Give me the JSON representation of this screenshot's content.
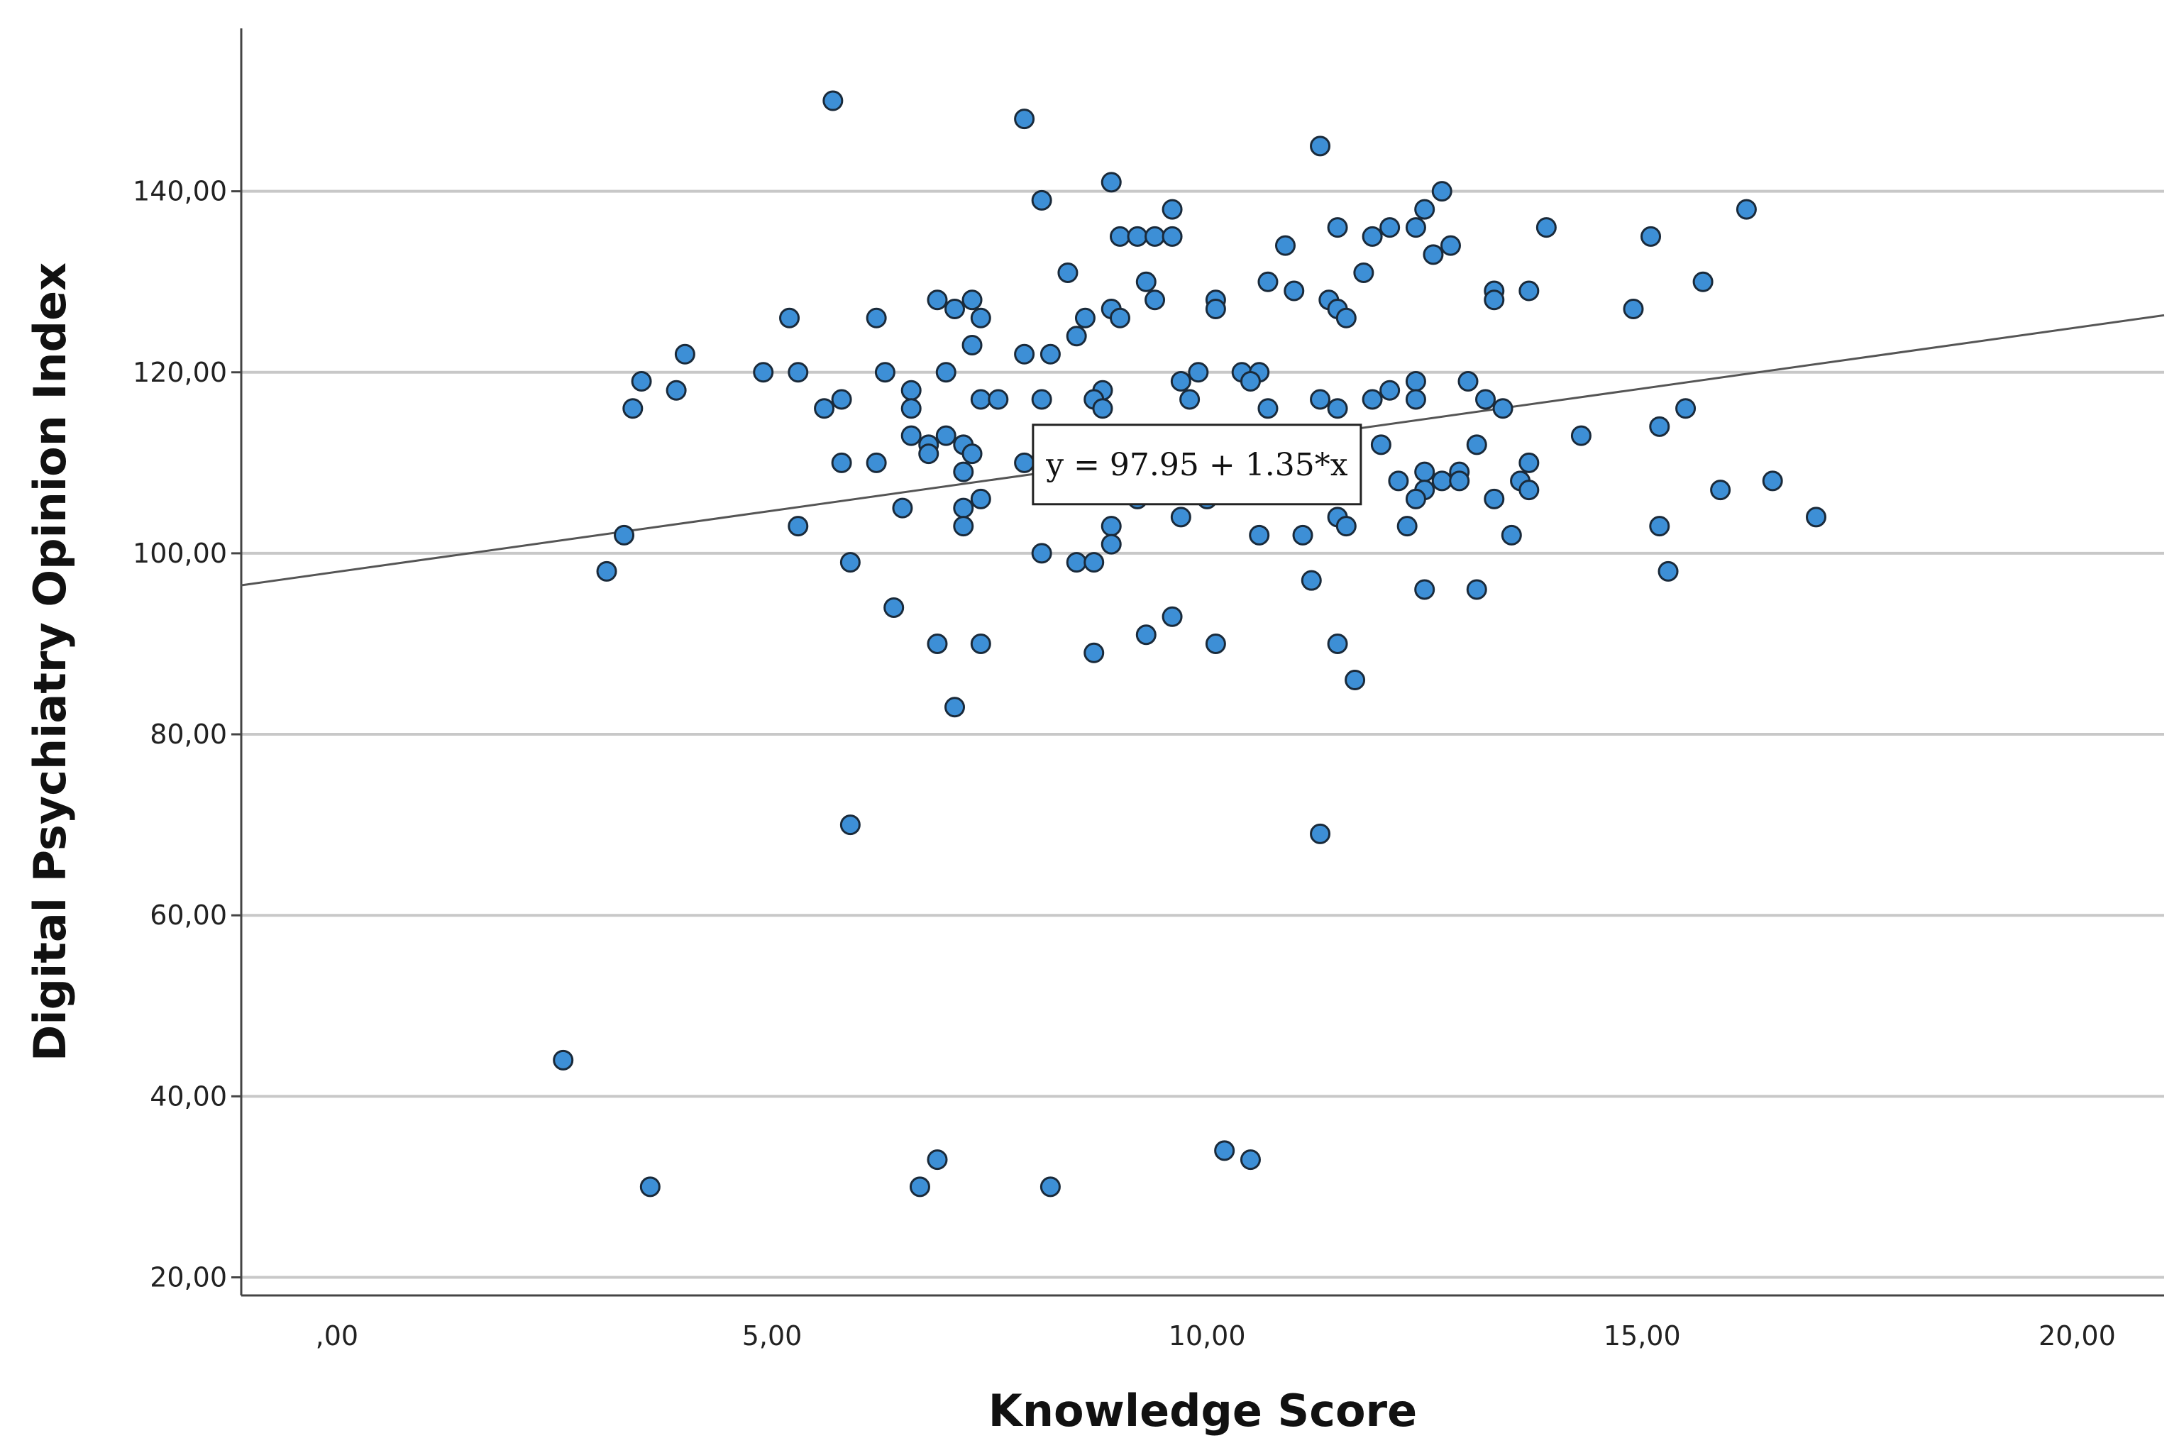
{
  "chart_data": {
    "type": "scatter",
    "title": "",
    "xlabel": "Knowledge Score",
    "ylabel": "Digital Psychiatry Opinion Index",
    "xlim": [
      -1.1,
      21.0
    ],
    "ylim": [
      18.0,
      158.0
    ],
    "x_ticks": [
      0,
      5,
      10,
      15,
      20
    ],
    "x_tick_labels": [
      ",00",
      "5,00",
      "10,00",
      "15,00",
      "20,00"
    ],
    "y_ticks": [
      20,
      40,
      60,
      80,
      100,
      120,
      140
    ],
    "y_tick_labels": [
      "20,00",
      "40,00",
      "60,00",
      "80,00",
      "100,00",
      "120,00",
      "140,00"
    ],
    "grid": "horizontal",
    "marker_color": "#3d8fd6",
    "marker_edge_color": "#1a2a3a",
    "line_color": "#555555",
    "fit_line": {
      "intercept": 97.95,
      "slope": 1.35,
      "label": "y = 97.95 + 1.35*x"
    },
    "points": [
      [
        5.7,
        150
      ],
      [
        7.9,
        148
      ],
      [
        11.3,
        145
      ],
      [
        8.9,
        141
      ],
      [
        12.7,
        140
      ],
      [
        8.1,
        139
      ],
      [
        9.6,
        138
      ],
      [
        12.5,
        138
      ],
      [
        16.2,
        138
      ],
      [
        11.5,
        136
      ],
      [
        12.1,
        136
      ],
      [
        12.4,
        136
      ],
      [
        13.9,
        136
      ],
      [
        9.0,
        135
      ],
      [
        9.2,
        135
      ],
      [
        9.4,
        135
      ],
      [
        9.6,
        135
      ],
      [
        11.9,
        135
      ],
      [
        15.1,
        135
      ],
      [
        10.9,
        134
      ],
      [
        12.8,
        134
      ],
      [
        12.6,
        133
      ],
      [
        8.4,
        131
      ],
      [
        11.8,
        131
      ],
      [
        9.3,
        130
      ],
      [
        10.7,
        130
      ],
      [
        15.7,
        130
      ],
      [
        11.0,
        129
      ],
      [
        13.3,
        129
      ],
      [
        13.7,
        129
      ],
      [
        6.9,
        128
      ],
      [
        7.3,
        128
      ],
      [
        9.4,
        128
      ],
      [
        10.1,
        128
      ],
      [
        11.4,
        128
      ],
      [
        13.3,
        128
      ],
      [
        7.1,
        127
      ],
      [
        8.9,
        127
      ],
      [
        10.1,
        127
      ],
      [
        11.5,
        127
      ],
      [
        14.9,
        127
      ],
      [
        5.2,
        126
      ],
      [
        6.2,
        126
      ],
      [
        7.4,
        126
      ],
      [
        8.6,
        126
      ],
      [
        9.0,
        126
      ],
      [
        11.6,
        126
      ],
      [
        8.5,
        124
      ],
      [
        7.3,
        123
      ],
      [
        4.0,
        122
      ],
      [
        7.9,
        122
      ],
      [
        8.2,
        122
      ],
      [
        4.9,
        120
      ],
      [
        5.3,
        120
      ],
      [
        6.3,
        120
      ],
      [
        7.0,
        120
      ],
      [
        9.9,
        120
      ],
      [
        10.4,
        120
      ],
      [
        10.6,
        120
      ],
      [
        3.5,
        119
      ],
      [
        9.7,
        119
      ],
      [
        10.5,
        119
      ],
      [
        12.4,
        119
      ],
      [
        13.0,
        119
      ],
      [
        3.9,
        118
      ],
      [
        6.6,
        118
      ],
      [
        8.8,
        118
      ],
      [
        12.1,
        118
      ],
      [
        5.8,
        117
      ],
      [
        7.4,
        117
      ],
      [
        7.6,
        117
      ],
      [
        8.1,
        117
      ],
      [
        8.7,
        117
      ],
      [
        9.8,
        117
      ],
      [
        11.3,
        117
      ],
      [
        11.9,
        117
      ],
      [
        12.4,
        117
      ],
      [
        13.2,
        117
      ],
      [
        3.4,
        116
      ],
      [
        5.6,
        116
      ],
      [
        6.6,
        116
      ],
      [
        8.8,
        116
      ],
      [
        10.7,
        116
      ],
      [
        11.5,
        116
      ],
      [
        13.4,
        116
      ],
      [
        15.5,
        116
      ],
      [
        15.2,
        114
      ],
      [
        6.6,
        113
      ],
      [
        7.0,
        113
      ],
      [
        14.3,
        113
      ],
      [
        6.8,
        112
      ],
      [
        7.2,
        112
      ],
      [
        10.0,
        112
      ],
      [
        12.0,
        112
      ],
      [
        13.1,
        112
      ],
      [
        6.8,
        111
      ],
      [
        7.3,
        111
      ],
      [
        7.9,
        110
      ],
      [
        13.7,
        110
      ],
      [
        5.8,
        110
      ],
      [
        6.2,
        110
      ],
      [
        7.2,
        109
      ],
      [
        12.5,
        109
      ],
      [
        12.9,
        109
      ],
      [
        12.2,
        108
      ],
      [
        12.7,
        108
      ],
      [
        12.9,
        108
      ],
      [
        13.6,
        108
      ],
      [
        16.5,
        108
      ],
      [
        12.5,
        107
      ],
      [
        13.7,
        107
      ],
      [
        15.9,
        107
      ],
      [
        7.4,
        106
      ],
      [
        9.2,
        106
      ],
      [
        10.0,
        106
      ],
      [
        12.4,
        106
      ],
      [
        13.3,
        106
      ],
      [
        6.5,
        105
      ],
      [
        7.2,
        105
      ],
      [
        9.7,
        104
      ],
      [
        11.5,
        104
      ],
      [
        17.0,
        104
      ],
      [
        5.3,
        103
      ],
      [
        7.2,
        103
      ],
      [
        8.9,
        103
      ],
      [
        11.6,
        103
      ],
      [
        12.3,
        103
      ],
      [
        15.2,
        103
      ],
      [
        3.3,
        102
      ],
      [
        10.6,
        102
      ],
      [
        11.1,
        102
      ],
      [
        13.5,
        102
      ],
      [
        8.9,
        101
      ],
      [
        8.1,
        100
      ],
      [
        5.9,
        99
      ],
      [
        8.5,
        99
      ],
      [
        8.7,
        99
      ],
      [
        3.1,
        98
      ],
      [
        15.3,
        98
      ],
      [
        11.2,
        97
      ],
      [
        12.5,
        96
      ],
      [
        13.1,
        96
      ],
      [
        6.4,
        94
      ],
      [
        9.6,
        93
      ],
      [
        9.3,
        91
      ],
      [
        6.9,
        90
      ],
      [
        7.4,
        90
      ],
      [
        10.1,
        90
      ],
      [
        11.5,
        90
      ],
      [
        8.7,
        89
      ],
      [
        11.7,
        86
      ],
      [
        7.1,
        83
      ],
      [
        5.9,
        70
      ],
      [
        11.3,
        69
      ],
      [
        2.6,
        44
      ],
      [
        10.2,
        34
      ],
      [
        10.5,
        33
      ],
      [
        6.9,
        33
      ],
      [
        3.6,
        30
      ],
      [
        6.7,
        30
      ],
      [
        8.2,
        30
      ]
    ]
  }
}
